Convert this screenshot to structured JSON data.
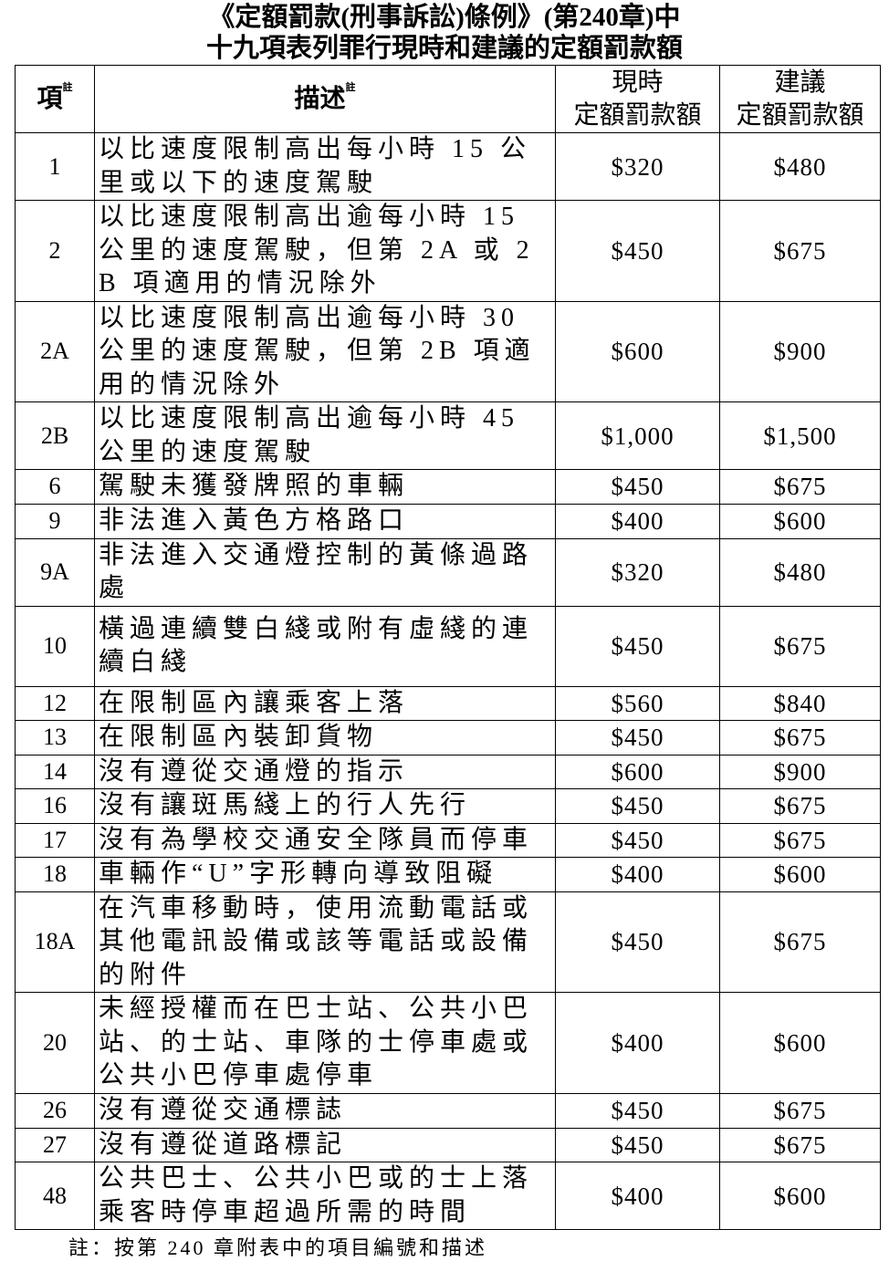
{
  "title_line1": "《定額罰款(刑事訴訟)條例》(第240章)中",
  "title_line2": "十九項表列罪行現時和建議的定額罰款額",
  "headers": {
    "item": "項",
    "item_note": "註",
    "description": "描述",
    "description_note": "註",
    "current_1": "現時",
    "current_2": "定額罰款額",
    "proposed_1": "建議",
    "proposed_2": "定額罰款額"
  },
  "rows": [
    {
      "item": "1",
      "description": "以比速度限制高出每小時 15 公里或以下的速度駕駛",
      "current": "$320",
      "proposed": "$480"
    },
    {
      "item": "2",
      "description": "以比速度限制高出逾每小時 15 公里的速度駕駛，但第 2A 或 2B 項適用的情況除外",
      "current": "$450",
      "proposed": "$675"
    },
    {
      "item": "2A",
      "description": "以比速度限制高出逾每小時 30 公里的速度駕駛，但第 2B 項適用的情況除外",
      "current": "$600",
      "proposed": "$900"
    },
    {
      "item": "2B",
      "description": "以比速度限制高出逾每小時 45 公里的速度駕駛",
      "current": "$1,000",
      "proposed": "$1,500"
    },
    {
      "item": "6",
      "description": "駕駛未獲發牌照的車輛",
      "current": "$450",
      "proposed": "$675"
    },
    {
      "item": "9",
      "description": "非法進入黃色方格路口",
      "current": "$400",
      "proposed": "$600"
    },
    {
      "item": "9A",
      "description": "非法進入交通燈控制的黃條過路處",
      "current": "$320",
      "proposed": "$480"
    },
    {
      "item": "10",
      "description": "橫過連續雙白綫或附有虛綫的連續白綫",
      "current": "$450",
      "proposed": "$675"
    },
    {
      "item": "12",
      "description": "在限制區內讓乘客上落",
      "current": "$560",
      "proposed": "$840"
    },
    {
      "item": "13",
      "description": "在限制區內裝卸貨物",
      "current": "$450",
      "proposed": "$675"
    },
    {
      "item": "14",
      "description": "沒有遵從交通燈的指示",
      "current": "$600",
      "proposed": "$900"
    },
    {
      "item": "16",
      "description": "沒有讓斑馬綫上的行人先行",
      "current": "$450",
      "proposed": "$675"
    },
    {
      "item": "17",
      "description": "沒有為學校交通安全隊員而停車",
      "current": "$450",
      "proposed": "$675"
    },
    {
      "item": "18",
      "description": "車輛作“U”字形轉向導致阻礙",
      "current": "$400",
      "proposed": "$600"
    },
    {
      "item": "18A",
      "description": "在汽車移動時，使用流動電話或其他電訊設備或該等電話或設備的附件",
      "current": "$450",
      "proposed": "$675"
    },
    {
      "item": "20",
      "description": "未經授權而在巴士站、公共小巴站、的士站、車隊的士停車處或公共小巴停車處停車",
      "current": "$400",
      "proposed": "$600"
    },
    {
      "item": "26",
      "description": "沒有遵從交通標誌",
      "current": "$450",
      "proposed": "$675"
    },
    {
      "item": "27",
      "description": "沒有遵從道路標記",
      "current": "$450",
      "proposed": "$675"
    },
    {
      "item": "48",
      "description": "公共巴士、公共小巴或的士上落乘客時停車超過所需的時間",
      "current": "$400",
      "proposed": "$600"
    }
  ],
  "footnote": "註：按第 240 章附表中的項目編號和描述"
}
